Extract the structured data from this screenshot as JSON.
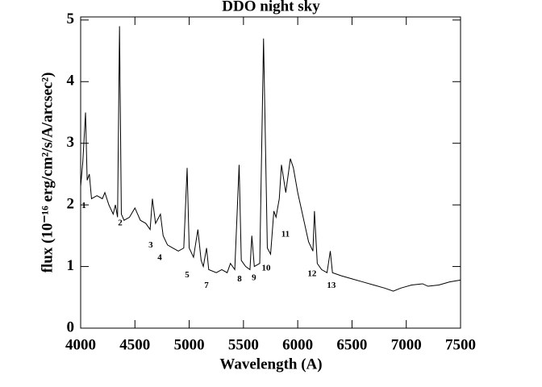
{
  "chart_data": {
    "type": "line",
    "title": "DDO night sky",
    "x_label": "Wavelength (A)",
    "y_label": "flux (10⁻¹⁶ erg/cm²/s/A/arcsec²)",
    "xlim": [
      4000,
      7500
    ],
    "ylim": [
      0,
      5.05
    ],
    "xticks": [
      4000,
      4500,
      5000,
      5500,
      6000,
      6500,
      7000,
      7500
    ],
    "yticks": [
      0,
      1,
      2,
      3,
      4,
      5
    ],
    "color": "#000000",
    "x": [
      4000,
      4020,
      4045,
      4060,
      4080,
      4100,
      4150,
      4200,
      4223,
      4260,
      4300,
      4320,
      4340,
      4358,
      4375,
      4400,
      4450,
      4500,
      4550,
      4600,
      4640,
      4661,
      4690,
      4735,
      4760,
      4800,
      4850,
      4900,
      4950,
      4981,
      5000,
      5040,
      5080,
      5110,
      5130,
      5160,
      5180,
      5250,
      5300,
      5350,
      5380,
      5420,
      5460,
      5480,
      5520,
      5560,
      5577,
      5600,
      5650,
      5685,
      5720,
      5750,
      5780,
      5800,
      5830,
      5850,
      5890,
      5932,
      5960,
      6000,
      6050,
      6100,
      6140,
      6154,
      6180,
      6220,
      6270,
      6300,
      6320,
      6400,
      6500,
      6600,
      6700,
      6800,
      6880,
      6950,
      7050,
      7150,
      7200,
      7300,
      7400,
      7500
    ],
    "values": [
      2.3,
      2.7,
      3.5,
      2.4,
      2.5,
      2.1,
      2.15,
      2.1,
      2.2,
      2.0,
      1.85,
      2.0,
      1.8,
      4.9,
      1.85,
      1.75,
      1.8,
      1.95,
      1.75,
      1.7,
      1.6,
      2.1,
      1.7,
      1.85,
      1.5,
      1.35,
      1.3,
      1.25,
      1.3,
      2.6,
      1.3,
      1.15,
      1.6,
      1.1,
      1.0,
      1.3,
      0.95,
      0.9,
      0.95,
      0.9,
      1.05,
      0.95,
      2.65,
      1.1,
      1.0,
      0.95,
      1.5,
      1.0,
      1.05,
      4.7,
      1.3,
      1.2,
      1.9,
      1.8,
      2.1,
      2.65,
      2.2,
      2.75,
      2.6,
      2.2,
      1.8,
      1.4,
      1.25,
      1.9,
      1.05,
      0.95,
      0.9,
      1.25,
      0.9,
      0.85,
      0.8,
      0.75,
      0.7,
      0.65,
      0.6,
      0.65,
      0.7,
      0.72,
      0.68,
      0.7,
      0.75,
      0.78
    ],
    "annotations": [
      {
        "text": "1",
        "x": 4030,
        "y": 1.98
      },
      {
        "text": "2",
        "x": 4364,
        "y": 1.7
      },
      {
        "text": "3",
        "x": 4646,
        "y": 1.34
      },
      {
        "text": "4",
        "x": 4728,
        "y": 1.14
      },
      {
        "text": "5",
        "x": 4981,
        "y": 0.86
      },
      {
        "text": "7",
        "x": 5159,
        "y": 0.69
      },
      {
        "text": "8",
        "x": 5464,
        "y": 0.79
      },
      {
        "text": "9",
        "x": 5597,
        "y": 0.81
      },
      {
        "text": "10",
        "x": 5709,
        "y": 0.97
      },
      {
        "text": "11",
        "x": 5887,
        "y": 1.52
      },
      {
        "text": "12",
        "x": 6132,
        "y": 0.88
      },
      {
        "text": "13",
        "x": 6310,
        "y": 0.69
      }
    ]
  }
}
